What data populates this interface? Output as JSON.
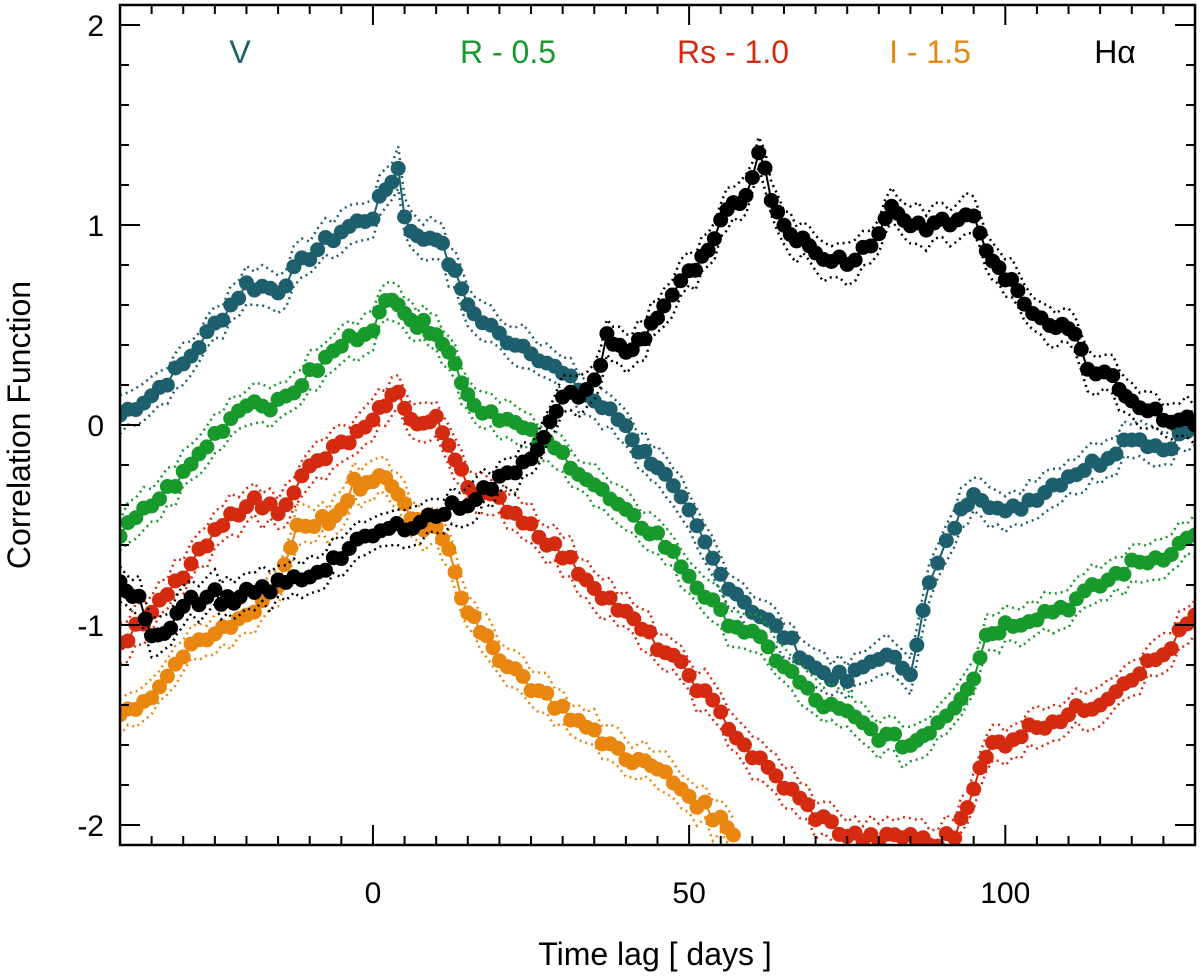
{
  "chart_data": {
    "type": "line",
    "title": "",
    "xlabel": "Time lag  [ days ]",
    "ylabel": "Correlation Function",
    "xlim": [
      -40,
      130
    ],
    "ylim": [
      -2.1,
      2.1
    ],
    "xticks": [
      0,
      50,
      100
    ],
    "xtick_labels": [
      "0",
      "50",
      "100"
    ],
    "yticks": [
      -2,
      -1,
      0,
      1,
      2
    ],
    "ytick_labels": [
      "-2",
      "-1",
      "0",
      "1",
      "2"
    ],
    "legend_position": "top",
    "series": [
      {
        "name": "V",
        "color": "#1e5f6e",
        "points": [
          [
            -40,
            0.05
          ],
          [
            -35,
            0.15
          ],
          [
            -30,
            0.3
          ],
          [
            -25,
            0.5
          ],
          [
            -20,
            0.7
          ],
          [
            -15,
            0.68
          ],
          [
            -10,
            0.85
          ],
          [
            -5,
            0.97
          ],
          [
            0,
            1.05
          ],
          [
            2,
            1.18
          ],
          [
            4,
            1.28
          ],
          [
            5,
            1.05
          ],
          [
            7,
            0.93
          ],
          [
            10,
            0.95
          ],
          [
            13,
            0.75
          ],
          [
            16,
            0.55
          ],
          [
            20,
            0.45
          ],
          [
            25,
            0.38
          ],
          [
            30,
            0.25
          ],
          [
            35,
            0.12
          ],
          [
            40,
            0.0
          ],
          [
            42,
            -0.12
          ],
          [
            45,
            -0.2
          ],
          [
            50,
            -0.45
          ],
          [
            55,
            -0.75
          ],
          [
            60,
            -0.92
          ],
          [
            65,
            -1.05
          ],
          [
            70,
            -1.22
          ],
          [
            75,
            -1.28
          ],
          [
            80,
            -1.15
          ],
          [
            85,
            -1.22
          ],
          [
            88,
            -0.8
          ],
          [
            92,
            -0.5
          ],
          [
            95,
            -0.32
          ],
          [
            100,
            -0.45
          ],
          [
            105,
            -0.35
          ],
          [
            110,
            -0.25
          ],
          [
            115,
            -0.18
          ],
          [
            120,
            -0.05
          ],
          [
            125,
            -0.12
          ],
          [
            130,
            0.0
          ]
        ]
      },
      {
        "name": "R -  0.5",
        "color": "#179a2b",
        "points": [
          [
            -40,
            -0.55
          ],
          [
            -35,
            -0.4
          ],
          [
            -30,
            -0.25
          ],
          [
            -25,
            -0.05
          ],
          [
            -20,
            0.12
          ],
          [
            -15,
            0.1
          ],
          [
            -10,
            0.25
          ],
          [
            -5,
            0.4
          ],
          [
            0,
            0.5
          ],
          [
            2,
            0.6
          ],
          [
            4,
            0.63
          ],
          [
            7,
            0.5
          ],
          [
            10,
            0.48
          ],
          [
            13,
            0.3
          ],
          [
            16,
            0.1
          ],
          [
            20,
            0.05
          ],
          [
            25,
            -0.05
          ],
          [
            30,
            -0.15
          ],
          [
            35,
            -0.3
          ],
          [
            40,
            -0.45
          ],
          [
            45,
            -0.55
          ],
          [
            50,
            -0.75
          ],
          [
            55,
            -0.95
          ],
          [
            60,
            -1.05
          ],
          [
            65,
            -1.2
          ],
          [
            70,
            -1.38
          ],
          [
            75,
            -1.45
          ],
          [
            80,
            -1.55
          ],
          [
            85,
            -1.6
          ],
          [
            88,
            -1.52
          ],
          [
            92,
            -1.4
          ],
          [
            95,
            -1.25
          ],
          [
            97,
            -1.05
          ],
          [
            100,
            -1.0
          ],
          [
            105,
            -0.95
          ],
          [
            110,
            -0.9
          ],
          [
            115,
            -0.8
          ],
          [
            120,
            -0.7
          ],
          [
            125,
            -0.65
          ],
          [
            130,
            -0.55
          ]
        ]
      },
      {
        "name": "Rs -  1.0",
        "color": "#d42a10",
        "points": [
          [
            -40,
            -1.1
          ],
          [
            -35,
            -0.95
          ],
          [
            -30,
            -0.75
          ],
          [
            -25,
            -0.55
          ],
          [
            -20,
            -0.38
          ],
          [
            -15,
            -0.42
          ],
          [
            -10,
            -0.22
          ],
          [
            -5,
            -0.1
          ],
          [
            0,
            0.0
          ],
          [
            2,
            0.12
          ],
          [
            4,
            0.15
          ],
          [
            7,
            0.0
          ],
          [
            10,
            0.02
          ],
          [
            13,
            -0.15
          ],
          [
            16,
            -0.35
          ],
          [
            20,
            -0.38
          ],
          [
            25,
            -0.5
          ],
          [
            30,
            -0.65
          ],
          [
            35,
            -0.8
          ],
          [
            40,
            -0.95
          ],
          [
            45,
            -1.1
          ],
          [
            50,
            -1.25
          ],
          [
            55,
            -1.45
          ],
          [
            60,
            -1.65
          ],
          [
            65,
            -1.8
          ],
          [
            70,
            -1.95
          ],
          [
            75,
            -2.05
          ],
          [
            80,
            -2.08
          ],
          [
            85,
            -2.05
          ],
          [
            88,
            -2.1
          ],
          [
            92,
            -2.05
          ],
          [
            95,
            -1.8
          ],
          [
            98,
            -1.6
          ],
          [
            100,
            -1.58
          ],
          [
            105,
            -1.5
          ],
          [
            110,
            -1.45
          ],
          [
            115,
            -1.38
          ],
          [
            120,
            -1.25
          ],
          [
            125,
            -1.15
          ],
          [
            130,
            -0.95
          ]
        ]
      },
      {
        "name": "I -  1.5",
        "color": "#e8860f",
        "points": [
          [
            -40,
            -1.45
          ],
          [
            -35,
            -1.35
          ],
          [
            -30,
            -1.15
          ],
          [
            -25,
            -1.05
          ],
          [
            -20,
            -0.95
          ],
          [
            -15,
            -0.8
          ],
          [
            -12,
            -0.5
          ],
          [
            -8,
            -0.48
          ],
          [
            -5,
            -0.45
          ],
          [
            -3,
            -0.3
          ],
          [
            0,
            -0.3
          ],
          [
            2,
            -0.25
          ],
          [
            4,
            -0.35
          ],
          [
            6,
            -0.45
          ],
          [
            8,
            -0.5
          ],
          [
            10,
            -0.5
          ],
          [
            12,
            -0.6
          ],
          [
            14,
            -0.85
          ],
          [
            17,
            -1.05
          ],
          [
            20,
            -1.15
          ],
          [
            25,
            -1.3
          ],
          [
            30,
            -1.42
          ],
          [
            35,
            -1.55
          ],
          [
            40,
            -1.65
          ],
          [
            43,
            -1.7
          ],
          [
            45,
            -1.72
          ],
          [
            50,
            -1.85
          ],
          [
            55,
            -1.98
          ],
          [
            57,
            -2.05
          ]
        ]
      },
      {
        "name": "Hα",
        "color": "#000000",
        "points": [
          [
            -40,
            -0.8
          ],
          [
            -37,
            -0.85
          ],
          [
            -35,
            -1.05
          ],
          [
            -32,
            -1.0
          ],
          [
            -30,
            -0.9
          ],
          [
            -25,
            -0.85
          ],
          [
            -22,
            -0.9
          ],
          [
            -20,
            -0.85
          ],
          [
            -15,
            -0.8
          ],
          [
            -10,
            -0.75
          ],
          [
            -5,
            -0.65
          ],
          [
            0,
            -0.55
          ],
          [
            5,
            -0.5
          ],
          [
            10,
            -0.45
          ],
          [
            15,
            -0.38
          ],
          [
            20,
            -0.28
          ],
          [
            25,
            -0.15
          ],
          [
            28,
            0.0
          ],
          [
            30,
            0.12
          ],
          [
            35,
            0.2
          ],
          [
            37,
            0.45
          ],
          [
            40,
            0.35
          ],
          [
            43,
            0.45
          ],
          [
            46,
            0.6
          ],
          [
            50,
            0.75
          ],
          [
            53,
            0.85
          ],
          [
            55,
            1.0
          ],
          [
            57,
            1.1
          ],
          [
            59,
            1.15
          ],
          [
            61,
            1.38
          ],
          [
            63,
            1.15
          ],
          [
            65,
            1.0
          ],
          [
            67,
            0.95
          ],
          [
            70,
            0.85
          ],
          [
            75,
            0.82
          ],
          [
            80,
            0.95
          ],
          [
            82,
            1.1
          ],
          [
            85,
            1.0
          ],
          [
            90,
            1.0
          ],
          [
            95,
            1.05
          ],
          [
            98,
            0.8
          ],
          [
            100,
            0.75
          ],
          [
            103,
            0.6
          ],
          [
            107,
            0.52
          ],
          [
            110,
            0.5
          ],
          [
            113,
            0.3
          ],
          [
            117,
            0.25
          ],
          [
            120,
            0.12
          ],
          [
            125,
            0.05
          ],
          [
            130,
            0.0
          ]
        ]
      }
    ]
  }
}
